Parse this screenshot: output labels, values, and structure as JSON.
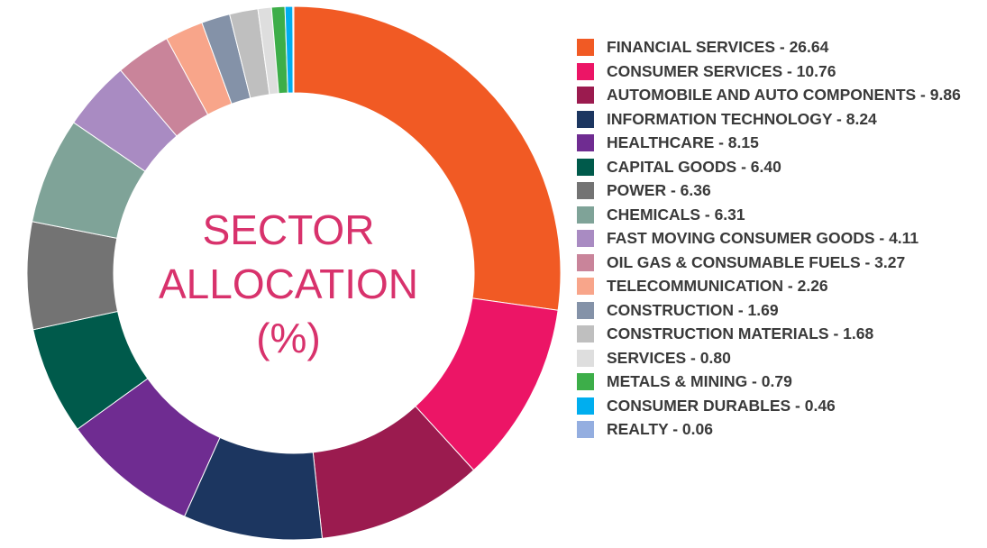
{
  "chart_data": {
    "type": "pie",
    "title": "SECTOR ALLOCATION (%)",
    "title_lines": [
      "SECTOR",
      "ALLOCATION",
      "(%)"
    ],
    "legend_position": "right",
    "slices": [
      {
        "label": "FINANCIAL SERVICES - 26.64",
        "value": 26.64,
        "color": "#f15a24"
      },
      {
        "label": "CONSUMER SERVICES - 10.76",
        "value": 10.76,
        "color": "#ec1566"
      },
      {
        "label": "AUTOMOBILE AND AUTO COMPONENTS - 9.86",
        "value": 9.86,
        "color": "#9b1b4f"
      },
      {
        "label": "INFORMATION TECHNOLOGY - 8.24",
        "value": 8.24,
        "color": "#1c3660"
      },
      {
        "label": "HEALTHCARE - 8.15",
        "value": 8.15,
        "color": "#6f2c91"
      },
      {
        "label": "CAPITAL GOODS - 6.40",
        "value": 6.4,
        "color": "#005a4b"
      },
      {
        "label": "POWER - 6.36",
        "value": 6.36,
        "color": "#737373"
      },
      {
        "label": "CHEMICALS - 6.31",
        "value": 6.31,
        "color": "#7fa398"
      },
      {
        "label": "FAST MOVING CONSUMER GOODS - 4.11",
        "value": 4.11,
        "color": "#a98bc2"
      },
      {
        "label": "OIL GAS & CONSUMABLE FUELS - 3.27",
        "value": 3.27,
        "color": "#c9849a"
      },
      {
        "label": "TELECOMMUNICATION - 2.26",
        "value": 2.26,
        "color": "#f8a58a"
      },
      {
        "label": "CONSTRUCTION - 1.69",
        "value": 1.69,
        "color": "#8492a8"
      },
      {
        "label": "CONSTRUCTION MATERIALS - 1.68",
        "value": 1.68,
        "color": "#bfbfbf"
      },
      {
        "label": "SERVICES - 0.80",
        "value": 0.8,
        "color": "#dedede"
      },
      {
        "label": "METALS & MINING - 0.79",
        "value": 0.79,
        "color": "#3dae49"
      },
      {
        "label": "CONSUMER DURABLES - 0.46",
        "value": 0.46,
        "color": "#00aeef"
      },
      {
        "label": "REALTY - 0.06",
        "value": 0.06,
        "color": "#94aee0"
      }
    ]
  }
}
